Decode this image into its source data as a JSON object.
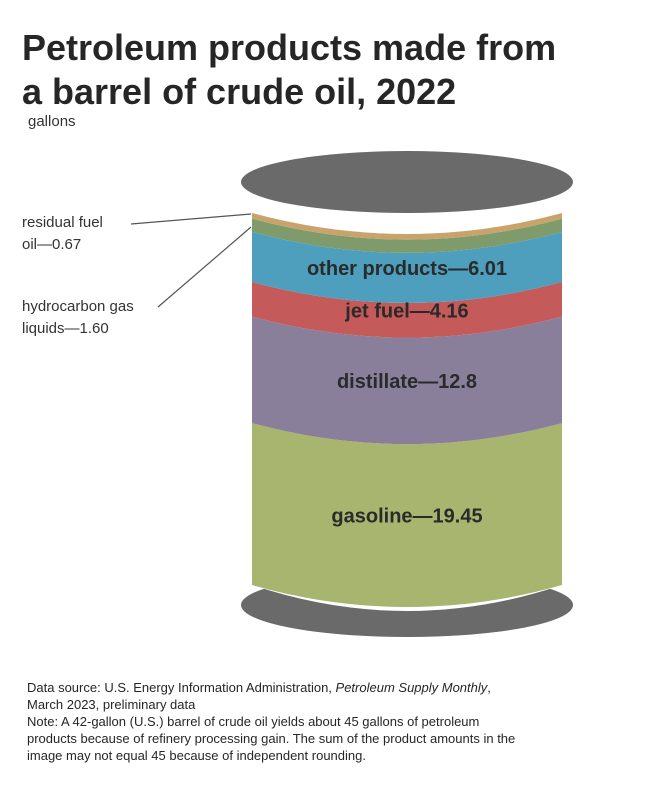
{
  "title_line1": "Petroleum products made from",
  "title_line2": "a barrel of crude oil, 2022",
  "unit_label": "gallons",
  "callouts": {
    "residual_line1": "residual fuel",
    "residual_line2": "oil—0.67",
    "hgl_line1": "hydrocarbon gas",
    "hgl_line2": "liquids—1.60"
  },
  "footer": {
    "source_prefix": "Data source: U.S. Energy Information Administration, ",
    "source_publication": "Petroleum Supply Monthly",
    "source_suffix": ",",
    "source_line2": "March 2023, preliminary data",
    "note_line1": "Note: A 42-gallon (U.S.) barrel of crude oil yields about 45 gallons of petroleum",
    "note_line2": "products because of refinery processing gain. The sum of the product amounts in the",
    "note_line3": "image may not equal 45 because of independent rounding."
  },
  "chart_data": {
    "type": "bar",
    "title": "Petroleum products made from a barrel of crude oil, 2022",
    "unit": "gallons",
    "stacked": true,
    "segments": [
      {
        "label": "gasoline—19.45",
        "name": "gasoline",
        "value": 19.45,
        "color": "#a7b56e"
      },
      {
        "label": "distillate—12.8",
        "name": "distillate",
        "value": 12.8,
        "color": "#8a7f9b"
      },
      {
        "label": "jet fuel—4.16",
        "name": "jet fuel",
        "value": 4.16,
        "color": "#c55a5a"
      },
      {
        "label": "other products—6.01",
        "name": "other products",
        "value": 6.01,
        "color": "#4d9fbd"
      },
      {
        "label": "hydrocarbon gas liquids—1.60",
        "name": "hydrocarbon gas liquids",
        "value": 1.6,
        "color": "#7f9b6c"
      },
      {
        "label": "residual fuel oil—0.67",
        "name": "residual fuel oil",
        "value": 0.67,
        "color": "#c8a46c"
      }
    ],
    "lid_color": "#6a6a6a"
  }
}
